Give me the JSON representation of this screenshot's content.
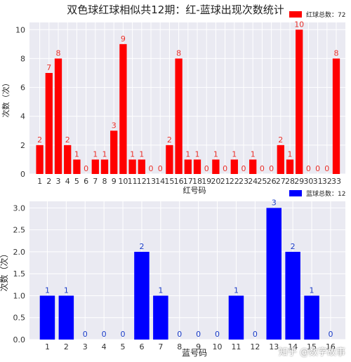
{
  "title": "双色球红球相似共12期：红-蓝球出现次数统计",
  "watermark": "知乎 @数字故事",
  "chart_data": [
    {
      "type": "bar",
      "color": "#ff0000",
      "label_color": "#e8302a",
      "legend": "红球总数：72",
      "legend_position": "top-right",
      "grid": true,
      "xlabel": "红号码",
      "ylabel": "次数（次）",
      "ylim": [
        0,
        10.5
      ],
      "yticks": [
        "0",
        "2",
        "4",
        "6",
        "8",
        "10"
      ],
      "categories": [
        "1",
        "2",
        "3",
        "4",
        "5",
        "6",
        "7",
        "8",
        "9",
        "10",
        "11",
        "12",
        "13",
        "14",
        "15",
        "16",
        "17",
        "18",
        "19",
        "20",
        "21",
        "22",
        "23",
        "24",
        "25",
        "26",
        "27",
        "28",
        "29",
        "30",
        "31",
        "32",
        "33"
      ],
      "values": [
        2,
        7,
        8,
        2,
        1,
        0,
        1,
        1,
        3,
        9,
        1,
        1,
        0,
        0,
        2,
        8,
        1,
        1,
        0,
        1,
        0,
        1,
        0,
        1,
        0,
        0,
        2,
        1,
        10,
        0,
        0,
        0,
        8
      ]
    },
    {
      "type": "bar",
      "color": "#0000ff",
      "label_color": "#1a3cc8",
      "legend": "蓝球总数：12",
      "legend_position": "top-right",
      "grid": true,
      "xlabel": "蓝号码",
      "ylabel": "次数（次）",
      "ylim": [
        0,
        3.15
      ],
      "yticks": [
        "0.0",
        "0.5",
        "1.0",
        "1.5",
        "2.0",
        "2.5",
        "3.0"
      ],
      "categories": [
        "1",
        "2",
        "3",
        "4",
        "5",
        "6",
        "7",
        "8",
        "9",
        "10",
        "11",
        "12",
        "13",
        "14",
        "15",
        "16"
      ],
      "values": [
        1,
        1,
        0,
        0,
        0,
        2,
        1,
        0,
        0,
        0,
        1,
        0,
        3,
        2,
        1,
        0
      ]
    }
  ]
}
